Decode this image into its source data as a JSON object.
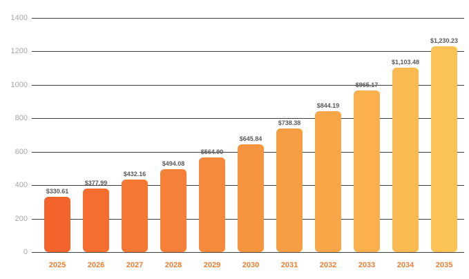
{
  "chart_data": {
    "type": "bar",
    "title": "",
    "xlabel": "",
    "ylabel": "",
    "categories": [
      "2025",
      "2026",
      "2027",
      "2028",
      "2029",
      "2030",
      "2031",
      "2032",
      "2033",
      "2034",
      "2035"
    ],
    "values": [
      330.61,
      377.99,
      432.16,
      494.08,
      564.9,
      645.84,
      738.38,
      844.19,
      965.17,
      1103.48,
      1230.23
    ],
    "data_labels": [
      "$330.61",
      "$377.99",
      "$432.16",
      "$494.08",
      "$564.90",
      "$645.84",
      "$738.38",
      "$844.19",
      "$965.17",
      "$1,103.48",
      "$1,230.23"
    ],
    "bar_colors": [
      "#F2642B",
      "#F36E2F",
      "#F47733",
      "#F58138",
      "#F68A3C",
      "#F79440",
      "#F79D44",
      "#F8A748",
      "#F9B04D",
      "#FABA51",
      "#FBC355"
    ],
    "y_ticks": [
      0,
      200,
      400,
      600,
      800,
      1000,
      1200,
      1400
    ],
    "ylim": [
      0,
      1400
    ],
    "grid": true,
    "legend": "none",
    "colors": {
      "background": "#FFFFFF",
      "gridline": "#3F3F3F",
      "y_tick_label": "#A6A6A6",
      "x_tick_label": "#ED7D31",
      "data_label": "#595959"
    }
  }
}
